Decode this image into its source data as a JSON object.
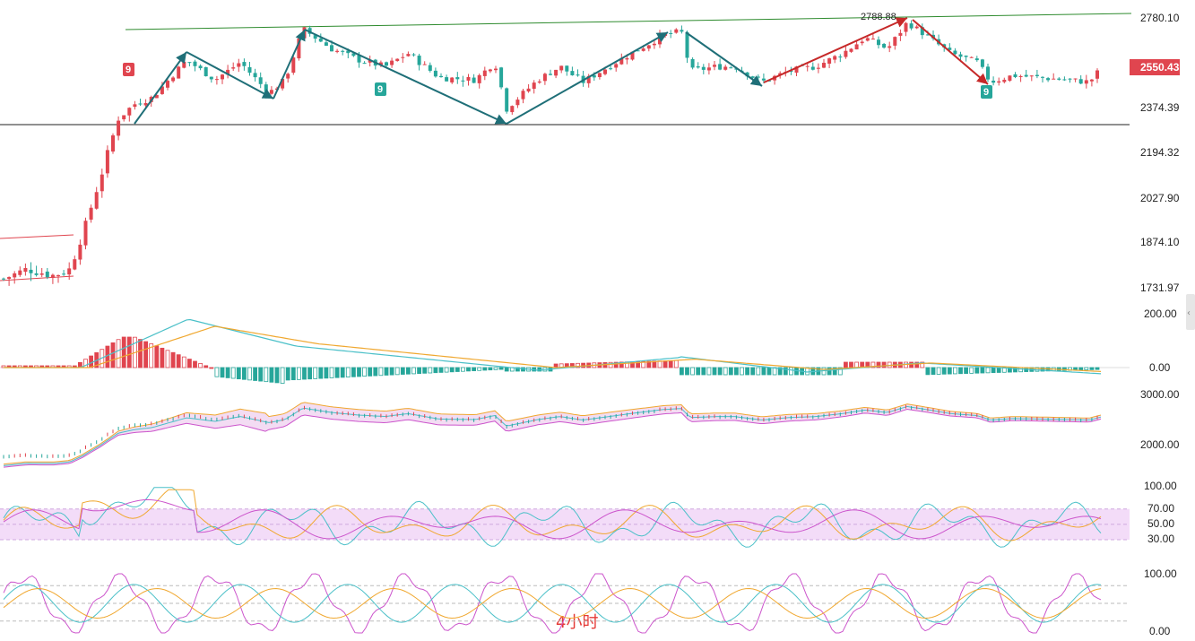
{
  "chart_data": [
    {
      "type": "candlestick",
      "panel": "price",
      "timeframe_label": "4小时",
      "y_ticks": [
        2780.1,
        2374.39,
        2194.32,
        2027.9,
        1874.1,
        1731.97
      ],
      "y_tick_labels": [
        "2780.10",
        "2374.39",
        "2194.32",
        "2027.90",
        "1874.10",
        "1731.97"
      ],
      "current_price": "2550.43",
      "high_annotation": "2788.88",
      "support_line": 2320,
      "resistance_line": [
        2772,
        2800
      ],
      "nine_signals": [
        {
          "label": "9",
          "type": "sell"
        },
        {
          "label": "9",
          "type": "buy"
        },
        {
          "label": "9",
          "type": "buy"
        }
      ],
      "colors": {
        "up": "#e0454f",
        "down": "#26a69a",
        "tag": "#e0454f"
      }
    },
    {
      "type": "macd",
      "panel": "macd",
      "y_ticks": [
        200.0,
        0.0
      ],
      "y_tick_labels": [
        "200.00",
        "0.00"
      ]
    },
    {
      "type": "bollinger",
      "panel": "boll",
      "y_ticks": [
        3000.0,
        2000.0
      ],
      "y_tick_labels": [
        "3000.00",
        "2000.00"
      ]
    },
    {
      "type": "rsi",
      "panel": "rsi",
      "y_ticks": [
        100.0,
        70.0,
        50.0,
        30.0
      ],
      "y_tick_labels": [
        "100.00",
        "70.00",
        "50.00",
        "30.00"
      ]
    },
    {
      "type": "kdj",
      "panel": "kdj",
      "y_ticks": [
        100.0,
        0.0
      ],
      "y_tick_labels": [
        "100.00",
        "0.00"
      ]
    }
  ]
}
